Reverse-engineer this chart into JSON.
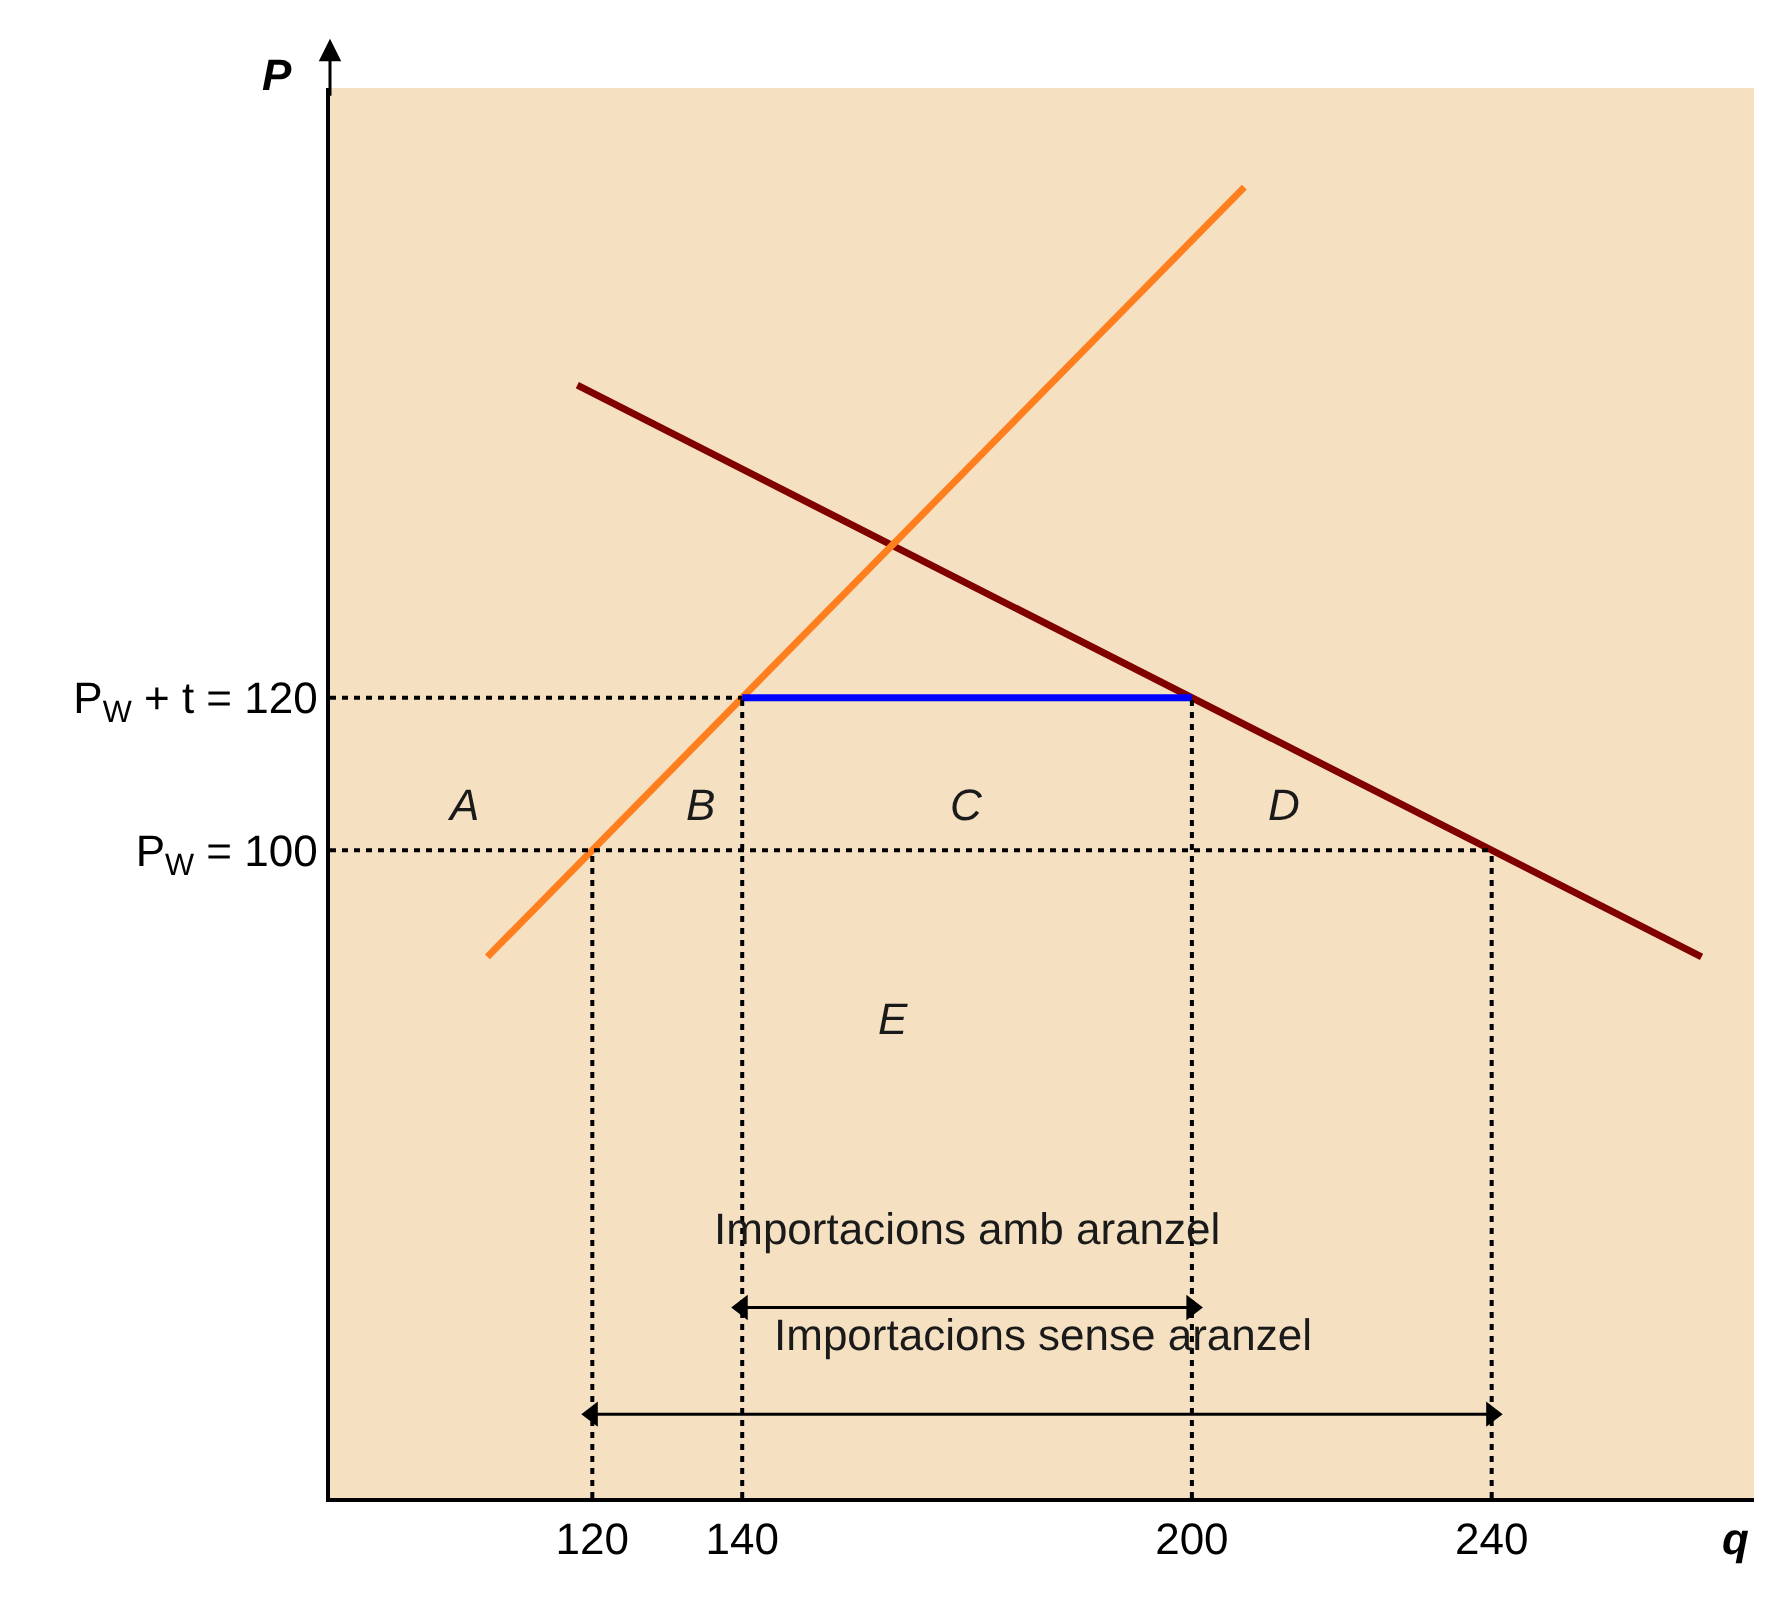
{
  "chart_data": {
    "type": "line",
    "xlabel": "q",
    "ylabel": "P",
    "xlim": [
      85,
      275
    ],
    "ylim": [
      15,
      200
    ],
    "xticks": [
      120,
      140,
      200,
      240
    ],
    "yticks": [
      {
        "value": 100,
        "label": "P$_{W}$ = 100"
      },
      {
        "value": 120,
        "label": "P$_{W}$ + t = 120"
      }
    ],
    "grid": false,
    "series": [
      {
        "x": [
          118,
          268
        ],
        "values": [
          161,
          86
        ],
        "color": "#800000"
      },
      {
        "x": [
          106,
          207
        ],
        "values": [
          86,
          187
        ],
        "color": "#ff7f1e"
      },
      {
        "x": [
          140,
          200
        ],
        "values": [
          120,
          120
        ],
        "color": "#0000ff"
      },
      {
        "x": [
          85,
          140
        ],
        "values": [
          120,
          120
        ],
        "color": "#000000",
        "line_style": "dotted"
      },
      {
        "x": [
          85,
          240
        ],
        "values": [
          100,
          100
        ],
        "color": "#000000",
        "line_style": "dotted"
      },
      {
        "x": [
          120,
          120
        ],
        "values": [
          15,
          100
        ],
        "color": "#000000",
        "line_style": "dotted"
      },
      {
        "x": [
          140,
          140
        ],
        "values": [
          15,
          120
        ],
        "color": "#000000",
        "line_style": "dotted"
      },
      {
        "x": [
          200,
          200
        ],
        "values": [
          15,
          120
        ],
        "color": "#000000",
        "line_style": "dotted"
      },
      {
        "x": [
          240,
          240
        ],
        "values": [
          15,
          100
        ],
        "color": "#000000",
        "line_style": "dotted"
      },
      {
        "x": [
          140,
          200
        ],
        "values": [
          40,
          40
        ],
        "color": "#000000",
        "marker": "triangle"
      },
      {
        "x": [
          120,
          240
        ],
        "values": [
          26,
          26
        ],
        "color": "#000000",
        "marker": "triangle"
      }
    ],
    "annotations": [
      "A",
      "B",
      "C",
      "D",
      "E",
      "Importacions amb aranzel",
      "Importacions sense aranzel"
    ]
  }
}
